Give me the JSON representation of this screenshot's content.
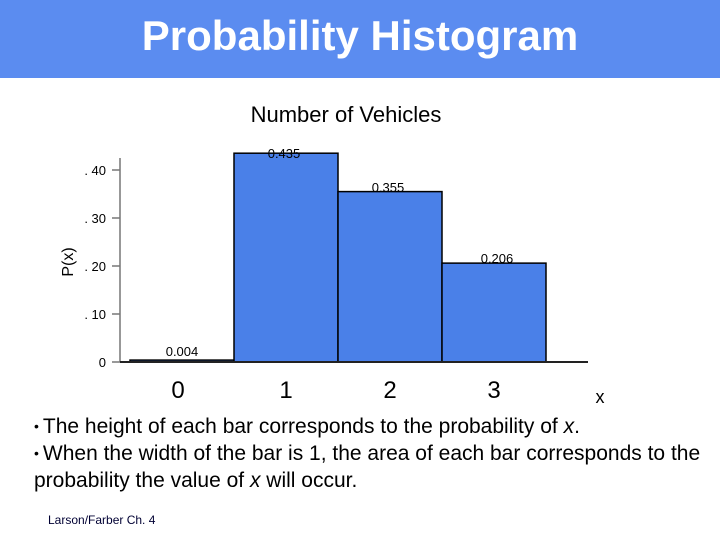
{
  "slide": {
    "title": "Probability Histogram",
    "footer": "Larson/Farber Ch. 4",
    "bullets": [
      {
        "before": "The height of each bar corresponds to the probability of ",
        "var": "x",
        "after": "."
      },
      {
        "before": "When the width of the bar is 1, the area of each bar corresponds to the probability the value of ",
        "var": "x",
        "after": " will occur."
      }
    ]
  },
  "chart_data": {
    "type": "bar",
    "title": "Number of Vehicles",
    "xlabel": "x",
    "ylabel": "P(x)",
    "categories": [
      "0",
      "1",
      "2",
      "3"
    ],
    "values": [
      0.004,
      0.435,
      0.355,
      0.206
    ],
    "data_labels": [
      "0.004",
      "0.435",
      "0.355",
      "0.206"
    ],
    "yticks": [
      {
        "value": 0,
        "label": "0"
      },
      {
        "value": 0.1,
        "label": ". 10"
      },
      {
        "value": 0.2,
        "label": ". 20"
      },
      {
        "value": 0.3,
        "label": ". 30"
      },
      {
        "value": 0.4,
        "label": ". 40"
      }
    ],
    "ylim": [
      0,
      0.45
    ],
    "bar_color": "#4a80e8",
    "bar_edge_color": "#000000",
    "legend": "none",
    "grid": false
  }
}
